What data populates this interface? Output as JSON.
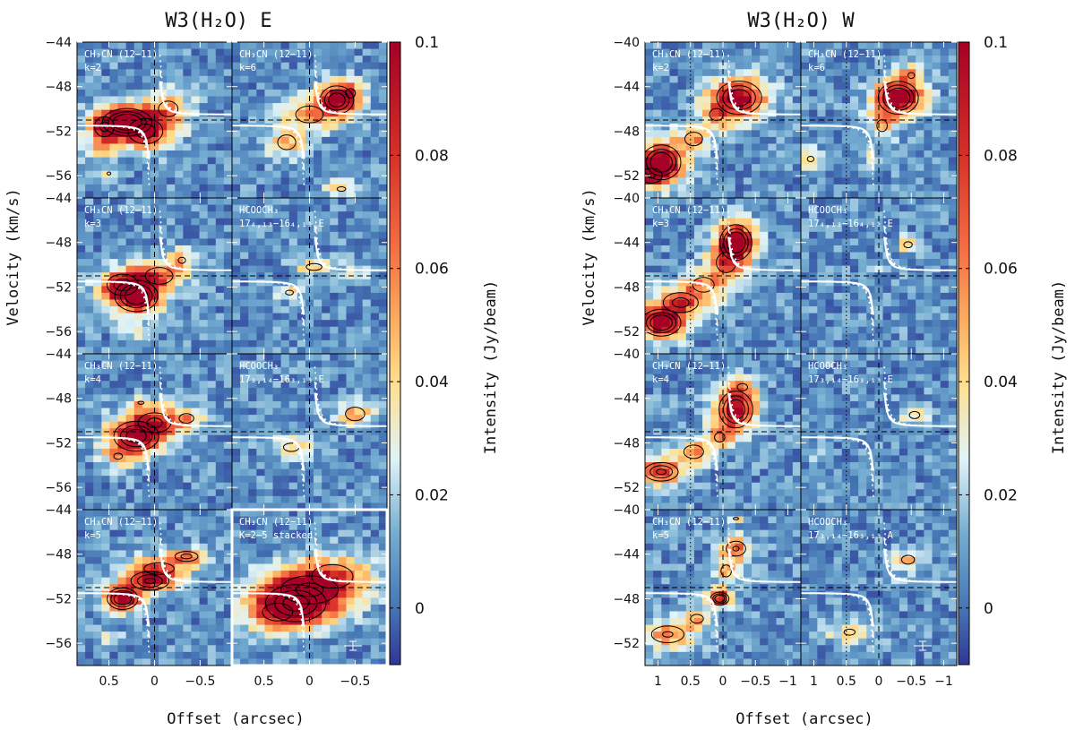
{
  "chart_data": [
    {
      "type": "heatmap",
      "title": "W3(H₂O) E",
      "xlabel": "Offset (arcsec)",
      "ylabel": "Velocity (km/s)",
      "xticks": [
        "0.5",
        "0",
        "−0.5"
      ],
      "xlim": [
        0.85,
        -0.85
      ],
      "yticks": [
        "−44",
        "−48",
        "−52",
        "−56"
      ],
      "ylim": [
        -58,
        -44
      ],
      "ref_velocity": -51,
      "ref_offset": 0,
      "panels": [
        {
          "label": "CH₃CN (12−11)",
          "sublabel": "k=2",
          "blobs": [
            [
              0.3,
              -51.2,
              0.22,
              1.0,
              1.0
            ],
            [
              0.1,
              -52.0,
              0.2,
              1.2,
              0.6
            ],
            [
              0.55,
              -51.6,
              0.12,
              1.0,
              0.55
            ],
            [
              -0.15,
              -50.0,
              0.2,
              1.3,
              0.35
            ],
            [
              0.5,
              -55.8,
              0.06,
              0.4,
              0.3
            ],
            [
              0.6,
              -53.6,
              0.14,
              0.8,
              0.25
            ]
          ]
        },
        {
          "label": "CH₃CN (12−11)",
          "sublabel": "k=6",
          "blobs": [
            [
              -0.3,
              -49.2,
              0.16,
              1.1,
              0.85
            ],
            [
              0.0,
              -50.5,
              0.2,
              1.0,
              0.45
            ],
            [
              0.25,
              -53.0,
              0.15,
              1.0,
              0.4
            ],
            [
              -0.45,
              -48.6,
              0.1,
              0.8,
              0.35
            ],
            [
              -0.35,
              -57.2,
              0.14,
              0.6,
              0.3
            ]
          ]
        },
        {
          "label": "CH₃CN (12−11)",
          "sublabel": "k=3",
          "blobs": [
            [
              0.2,
              -52.8,
              0.2,
              1.2,
              0.9
            ],
            [
              0.35,
              -51.8,
              0.18,
              1.0,
              0.6
            ],
            [
              -0.05,
              -51.0,
              0.2,
              1.0,
              0.45
            ],
            [
              -0.3,
              -49.6,
              0.12,
              0.8,
              0.3
            ],
            [
              0.2,
              -56.2,
              0.1,
              0.5,
              0.25
            ]
          ]
        },
        {
          "label": "HCOOCH₃",
          "sublabel": "17₄,₁₃−16₄,₁₂ E",
          "blobs": [
            [
              -0.05,
              -50.2,
              0.14,
              0.5,
              0.38
            ],
            [
              0.22,
              -52.5,
              0.1,
              0.5,
              0.32
            ],
            [
              -0.5,
              -50.6,
              0.1,
              0.5,
              0.22
            ]
          ]
        },
        {
          "label": "CH₃CN (12−11)",
          "sublabel": "k=4",
          "blobs": [
            [
              0.2,
              -51.4,
              0.22,
              1.2,
              0.8
            ],
            [
              0.0,
              -50.2,
              0.2,
              1.0,
              0.55
            ],
            [
              0.15,
              -48.4,
              0.1,
              0.4,
              0.3
            ],
            [
              -0.35,
              -49.8,
              0.15,
              0.8,
              0.35
            ],
            [
              0.4,
              -53.2,
              0.14,
              0.8,
              0.3
            ]
          ]
        },
        {
          "label": "HCOOCH₃",
          "sublabel": "17₃,₁₄−16₃,₁₃ E",
          "blobs": [
            [
              -0.5,
              -49.4,
              0.14,
              0.8,
              0.45
            ],
            [
              0.2,
              -52.4,
              0.16,
              0.7,
              0.35
            ]
          ]
        },
        {
          "label": "CH₃CN (12−11)",
          "sublabel": "k=5",
          "blobs": [
            [
              0.35,
              -52.0,
              0.14,
              0.8,
              0.95
            ],
            [
              0.05,
              -50.4,
              0.2,
              0.8,
              0.7
            ],
            [
              -0.35,
              -48.2,
              0.14,
              0.5,
              0.55
            ],
            [
              -0.05,
              -49.3,
              0.25,
              0.8,
              0.4
            ],
            [
              0.5,
              -55.5,
              0.1,
              0.5,
              0.25
            ]
          ]
        },
        {
          "label": "CH₃CN (12−11)",
          "sublabel": "K=2−5 stacked",
          "stacked": true,
          "blobs": [
            [
              0.15,
              -52.4,
              0.3,
              1.5,
              0.78
            ],
            [
              0.0,
              -51.2,
              0.35,
              1.4,
              0.55
            ],
            [
              -0.25,
              -50.0,
              0.3,
              1.4,
              0.45
            ],
            [
              0.35,
              -53.2,
              0.25,
              1.2,
              0.4
            ]
          ]
        }
      ]
    },
    {
      "type": "heatmap",
      "title": "W3(H₂O) W",
      "xlabel": "Offset (arcsec)",
      "ylabel": "Velocity (km/s)",
      "xticks": [
        "1",
        "0.5",
        "0",
        "−0.5",
        "−1"
      ],
      "xlim": [
        1.2,
        -1.2
      ],
      "yticks": [
        "−40",
        "−44",
        "−48",
        "−52"
      ],
      "ylim": [
        -54,
        -40
      ],
      "ref_velocity": -47,
      "ref_offset": 0,
      "ref_offset2": 0.5,
      "panels": [
        {
          "label": "CH₃CN (12−11)",
          "sublabel": "k=2",
          "blobs": [
            [
              0.95,
              -50.8,
              0.25,
              1.3,
              0.95
            ],
            [
              -0.25,
              -45.0,
              0.3,
              1.3,
              0.85
            ],
            [
              0.45,
              -48.7,
              0.18,
              0.8,
              0.45
            ],
            [
              0.1,
              -46.5,
              0.2,
              1.0,
              0.35
            ],
            [
              1.1,
              -52.0,
              0.2,
              0.8,
              0.5
            ]
          ]
        },
        {
          "label": "CH₃CN (12−11)",
          "sublabel": "k=6",
          "blobs": [
            [
              -0.3,
              -45.0,
              0.25,
              1.2,
              1.0
            ],
            [
              -0.05,
              -47.5,
              0.15,
              1.0,
              0.35
            ],
            [
              -0.5,
              -43.0,
              0.15,
              0.8,
              0.3
            ],
            [
              1.05,
              -50.5,
              0.15,
              0.7,
              0.3
            ],
            [
              0.1,
              -50.5,
              0.1,
              0.6,
              0.22
            ]
          ]
        },
        {
          "label": "CH₃CN (12−11)",
          "sublabel": "k=3",
          "blobs": [
            [
              -0.2,
              -44.0,
              0.2,
              1.3,
              1.0
            ],
            [
              0.95,
              -51.2,
              0.25,
              1.0,
              0.95
            ],
            [
              0.65,
              -49.4,
              0.3,
              1.0,
              0.55
            ],
            [
              0.3,
              -47.8,
              0.25,
              1.0,
              0.4
            ],
            [
              -0.05,
              -45.8,
              0.2,
              1.2,
              0.45
            ]
          ]
        },
        {
          "label": "HCOOCH₃",
          "sublabel": "17₄,₁₃−16₄,₁₂ E",
          "blobs": [
            [
              -0.45,
              -44.2,
              0.12,
              0.5,
              0.35
            ],
            [
              0.05,
              -46.2,
              0.1,
              0.4,
              0.22
            ]
          ]
        },
        {
          "label": "CH₃CN (12−11)",
          "sublabel": "k=4",
          "blobs": [
            [
              -0.2,
              -45.0,
              0.22,
              1.4,
              0.9
            ],
            [
              0.95,
              -50.6,
              0.25,
              0.8,
              0.7
            ],
            [
              0.45,
              -48.8,
              0.2,
              0.8,
              0.45
            ],
            [
              0.05,
              -47.5,
              0.15,
              0.8,
              0.35
            ],
            [
              -0.3,
              -43.0,
              0.15,
              0.6,
              0.35
            ]
          ]
        },
        {
          "label": "HCOOCH₃",
          "sublabel": "17₃,₁₄−16₃,₁₃ E",
          "blobs": [
            [
              -0.55,
              -45.5,
              0.15,
              0.6,
              0.35
            ],
            [
              0.95,
              -49.2,
              0.1,
              0.4,
              0.2
            ]
          ]
        },
        {
          "label": "CH₃CN (12−11)",
          "sublabel": "k=5",
          "blobs": [
            [
              0.05,
              -48.0,
              0.12,
              0.5,
              0.9
            ],
            [
              -0.2,
              -43.5,
              0.18,
              0.8,
              0.5
            ],
            [
              0.85,
              -51.2,
              0.3,
              0.9,
              0.5
            ],
            [
              0.4,
              -49.8,
              0.15,
              0.6,
              0.4
            ],
            [
              -0.2,
              -40.8,
              0.12,
              0.3,
              0.3
            ],
            [
              -0.05,
              -45.5,
              0.15,
              1.0,
              0.35
            ]
          ]
        },
        {
          "label": "HCOOCH₃",
          "sublabel": "17₃,₁₄−16₃,₁₃ A",
          "blobs": [
            [
              -0.45,
              -44.5,
              0.15,
              0.6,
              0.4
            ],
            [
              0.45,
              -51.0,
              0.25,
              0.8,
              0.3
            ],
            [
              -0.4,
              -46.5,
              0.1,
              0.4,
              0.2
            ]
          ]
        }
      ]
    }
  ],
  "colorbar": {
    "label": "Intensity (Jy/beam)",
    "ticks": [
      "0",
      "0.02",
      "0.04",
      "0.06",
      "0.08",
      "0.1"
    ],
    "tick_values": [
      0,
      0.02,
      0.04,
      0.06,
      0.08,
      0.1
    ],
    "range": [
      -0.01,
      0.1
    ]
  }
}
